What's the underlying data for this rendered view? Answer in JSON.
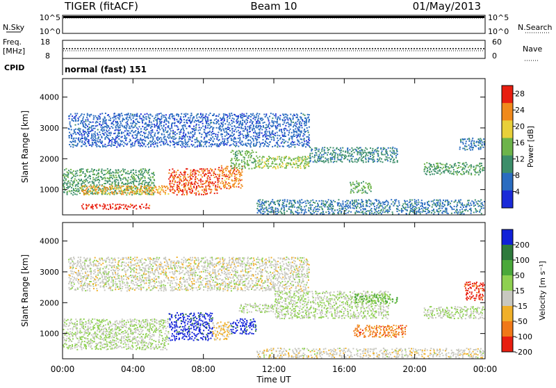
{
  "header": {
    "station": "TIGER (fitACF)",
    "beam": "Beam 10",
    "date": "01/May/2013"
  },
  "status_panels": {
    "nsky_label": "N.Sky",
    "nsearch_label": "N.Search",
    "sky_ticks": [
      "10^5",
      "10^0"
    ],
    "freq_label": "Freq.",
    "freq_unit": "[MHz]",
    "freq_ticks": [
      "18",
      "8"
    ],
    "nave_label": "Nave",
    "nave_ticks": [
      "60",
      "0"
    ],
    "cpid_label": "CPID",
    "cpid_value": "normal (fast) 151"
  },
  "chart_data": [
    {
      "type": "heatmap",
      "title": "",
      "xlabel": "Time UT",
      "ylabel": "Slant Range [km]",
      "xlim": [
        "00:00",
        "24:00"
      ],
      "ylim": [
        180,
        4600
      ],
      "xticks": [
        "00:00",
        "04:00",
        "08:00",
        "12:00",
        "16:00",
        "20:00",
        "00:00"
      ],
      "yticks": [
        1000,
        2000,
        3000,
        4000
      ],
      "colorbar": {
        "label": "Power [dB]",
        "ticks": [
          4,
          8,
          12,
          16,
          20,
          24,
          28
        ],
        "range": [
          0,
          30
        ],
        "colors": [
          "#1a2ad8",
          "#2a6cc0",
          "#3c8e6a",
          "#6db44a",
          "#e8d03a",
          "#f08a1c",
          "#e81e10"
        ]
      },
      "regions": [
        {
          "t": [
            0.0,
            5.2
          ],
          "r": [
            850,
            1700
          ],
          "value": 12
        },
        {
          "t": [
            1.0,
            6.0
          ],
          "r": [
            850,
            1150
          ],
          "value": 22
        },
        {
          "t": [
            1.0,
            5.0
          ],
          "r": [
            380,
            560
          ],
          "value": 28
        },
        {
          "t": [
            6.0,
            8.8
          ],
          "r": [
            850,
            1700
          ],
          "value": 26
        },
        {
          "t": [
            8.8,
            10.2
          ],
          "r": [
            1050,
            1800
          ],
          "value": 24
        },
        {
          "t": [
            9.5,
            11.0
          ],
          "r": [
            1700,
            2300
          ],
          "value": 14
        },
        {
          "t": [
            11.0,
            14.0
          ],
          "r": [
            1700,
            2100
          ],
          "value": 16
        },
        {
          "t": [
            14.0,
            19.0
          ],
          "r": [
            1900,
            2400
          ],
          "value": 10
        },
        {
          "t": [
            0.3,
            14.0
          ],
          "r": [
            2400,
            3500
          ],
          "value": 6
        },
        {
          "t": [
            11.0,
            24.0
          ],
          "r": [
            220,
            700
          ],
          "value": 8
        },
        {
          "t": [
            16.3,
            17.5
          ],
          "r": [
            900,
            1300
          ],
          "value": 14
        },
        {
          "t": [
            20.5,
            24.0
          ],
          "r": [
            1500,
            1900
          ],
          "value": 12
        },
        {
          "t": [
            22.5,
            24.0
          ],
          "r": [
            2300,
            2700
          ],
          "value": 8
        }
      ]
    },
    {
      "type": "heatmap",
      "title": "",
      "xlabel": "Time UT",
      "ylabel": "Slant Range [km]",
      "xlim": [
        "00:00",
        "24:00"
      ],
      "ylim": [
        180,
        4600
      ],
      "xticks": [
        "00:00",
        "04:00",
        "08:00",
        "12:00",
        "16:00",
        "20:00",
        "00:00"
      ],
      "yticks": [
        1000,
        2000,
        3000,
        4000
      ],
      "colorbar": {
        "label": "Velocity [m s⁻¹]",
        "ticks": [
          "200",
          "100",
          "50",
          "15",
          "-15",
          "-50",
          "-100",
          "-200"
        ],
        "range": [
          -250,
          250
        ],
        "colors": [
          "#1020d8",
          "#2e7a3c",
          "#4aa83a",
          "#8ed050",
          "#c8c8c0",
          "#f0b02a",
          "#f07818",
          "#e81e10"
        ]
      },
      "regions": [
        {
          "t": [
            0.0,
            6.0
          ],
          "r": [
            500,
            1500
          ],
          "value": 0
        },
        {
          "t": [
            6.0,
            8.5
          ],
          "r": [
            800,
            1700
          ],
          "value": 220
        },
        {
          "t": [
            8.5,
            9.5
          ],
          "r": [
            800,
            1400
          ],
          "value": -80
        },
        {
          "t": [
            9.5,
            11.0
          ],
          "r": [
            1000,
            1500
          ],
          "value": 220
        },
        {
          "t": [
            10.0,
            12.0
          ],
          "r": [
            1700,
            2000
          ],
          "value": 0
        },
        {
          "t": [
            12.0,
            18.5
          ],
          "r": [
            1500,
            2400
          ],
          "value": 0
        },
        {
          "t": [
            16.5,
            19.0
          ],
          "r": [
            2000,
            2300
          ],
          "value": 60
        },
        {
          "t": [
            0.3,
            14.0
          ],
          "r": [
            2400,
            3500
          ],
          "value": -30
        },
        {
          "t": [
            11.0,
            24.0
          ],
          "r": [
            220,
            550
          ],
          "value": -40
        },
        {
          "t": [
            16.5,
            19.5
          ],
          "r": [
            900,
            1300
          ],
          "value": -150
        },
        {
          "t": [
            20.5,
            24.0
          ],
          "r": [
            1500,
            1900
          ],
          "value": 0
        },
        {
          "t": [
            22.8,
            24.0
          ],
          "r": [
            2100,
            2700
          ],
          "value": -220
        }
      ]
    }
  ]
}
